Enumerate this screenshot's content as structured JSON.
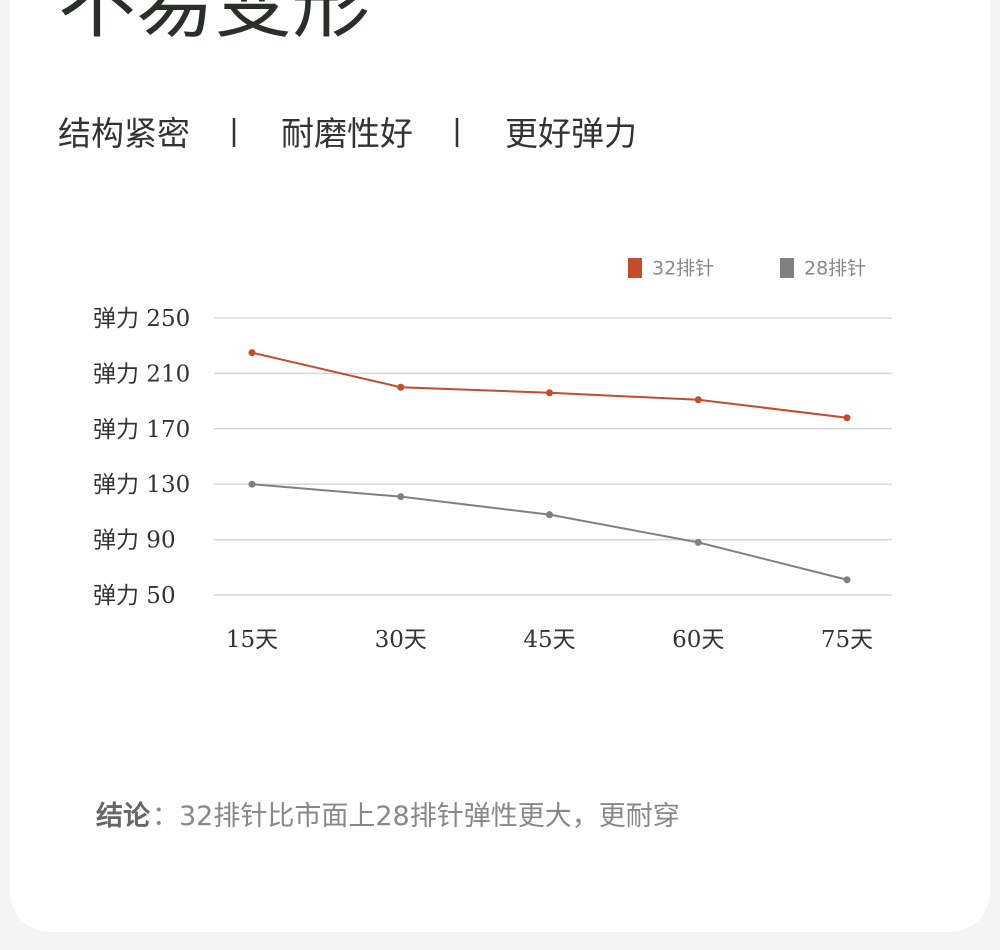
{
  "header": {
    "title": "不易变形",
    "features": [
      "结构紧密",
      "耐磨性好",
      "更好弹力"
    ]
  },
  "chart_data": {
    "type": "line",
    "categories": [
      "15天",
      "30天",
      "45天",
      "60天",
      "75天"
    ],
    "series": [
      {
        "name": "32排针",
        "color": "#c44b2b",
        "values": [
          225,
          200,
          196,
          191,
          178
        ]
      },
      {
        "name": "28排针",
        "color": "#808080",
        "values": [
          130,
          121,
          108,
          88,
          61
        ]
      }
    ],
    "ylim": [
      50,
      250
    ],
    "yticks": [
      {
        "value": 250,
        "label": "弹力 250"
      },
      {
        "value": 210,
        "label": "弹力 210"
      },
      {
        "value": 170,
        "label": "弹力 170"
      },
      {
        "value": 130,
        "label": "弹力 130"
      },
      {
        "value": 90,
        "label": "弹力 90"
      },
      {
        "value": 50,
        "label": "弹力 50"
      }
    ],
    "grid": true
  },
  "conclusion": {
    "label": "结论",
    "text": "：32排针比市面上28排针弹性更大，更耐穿"
  }
}
